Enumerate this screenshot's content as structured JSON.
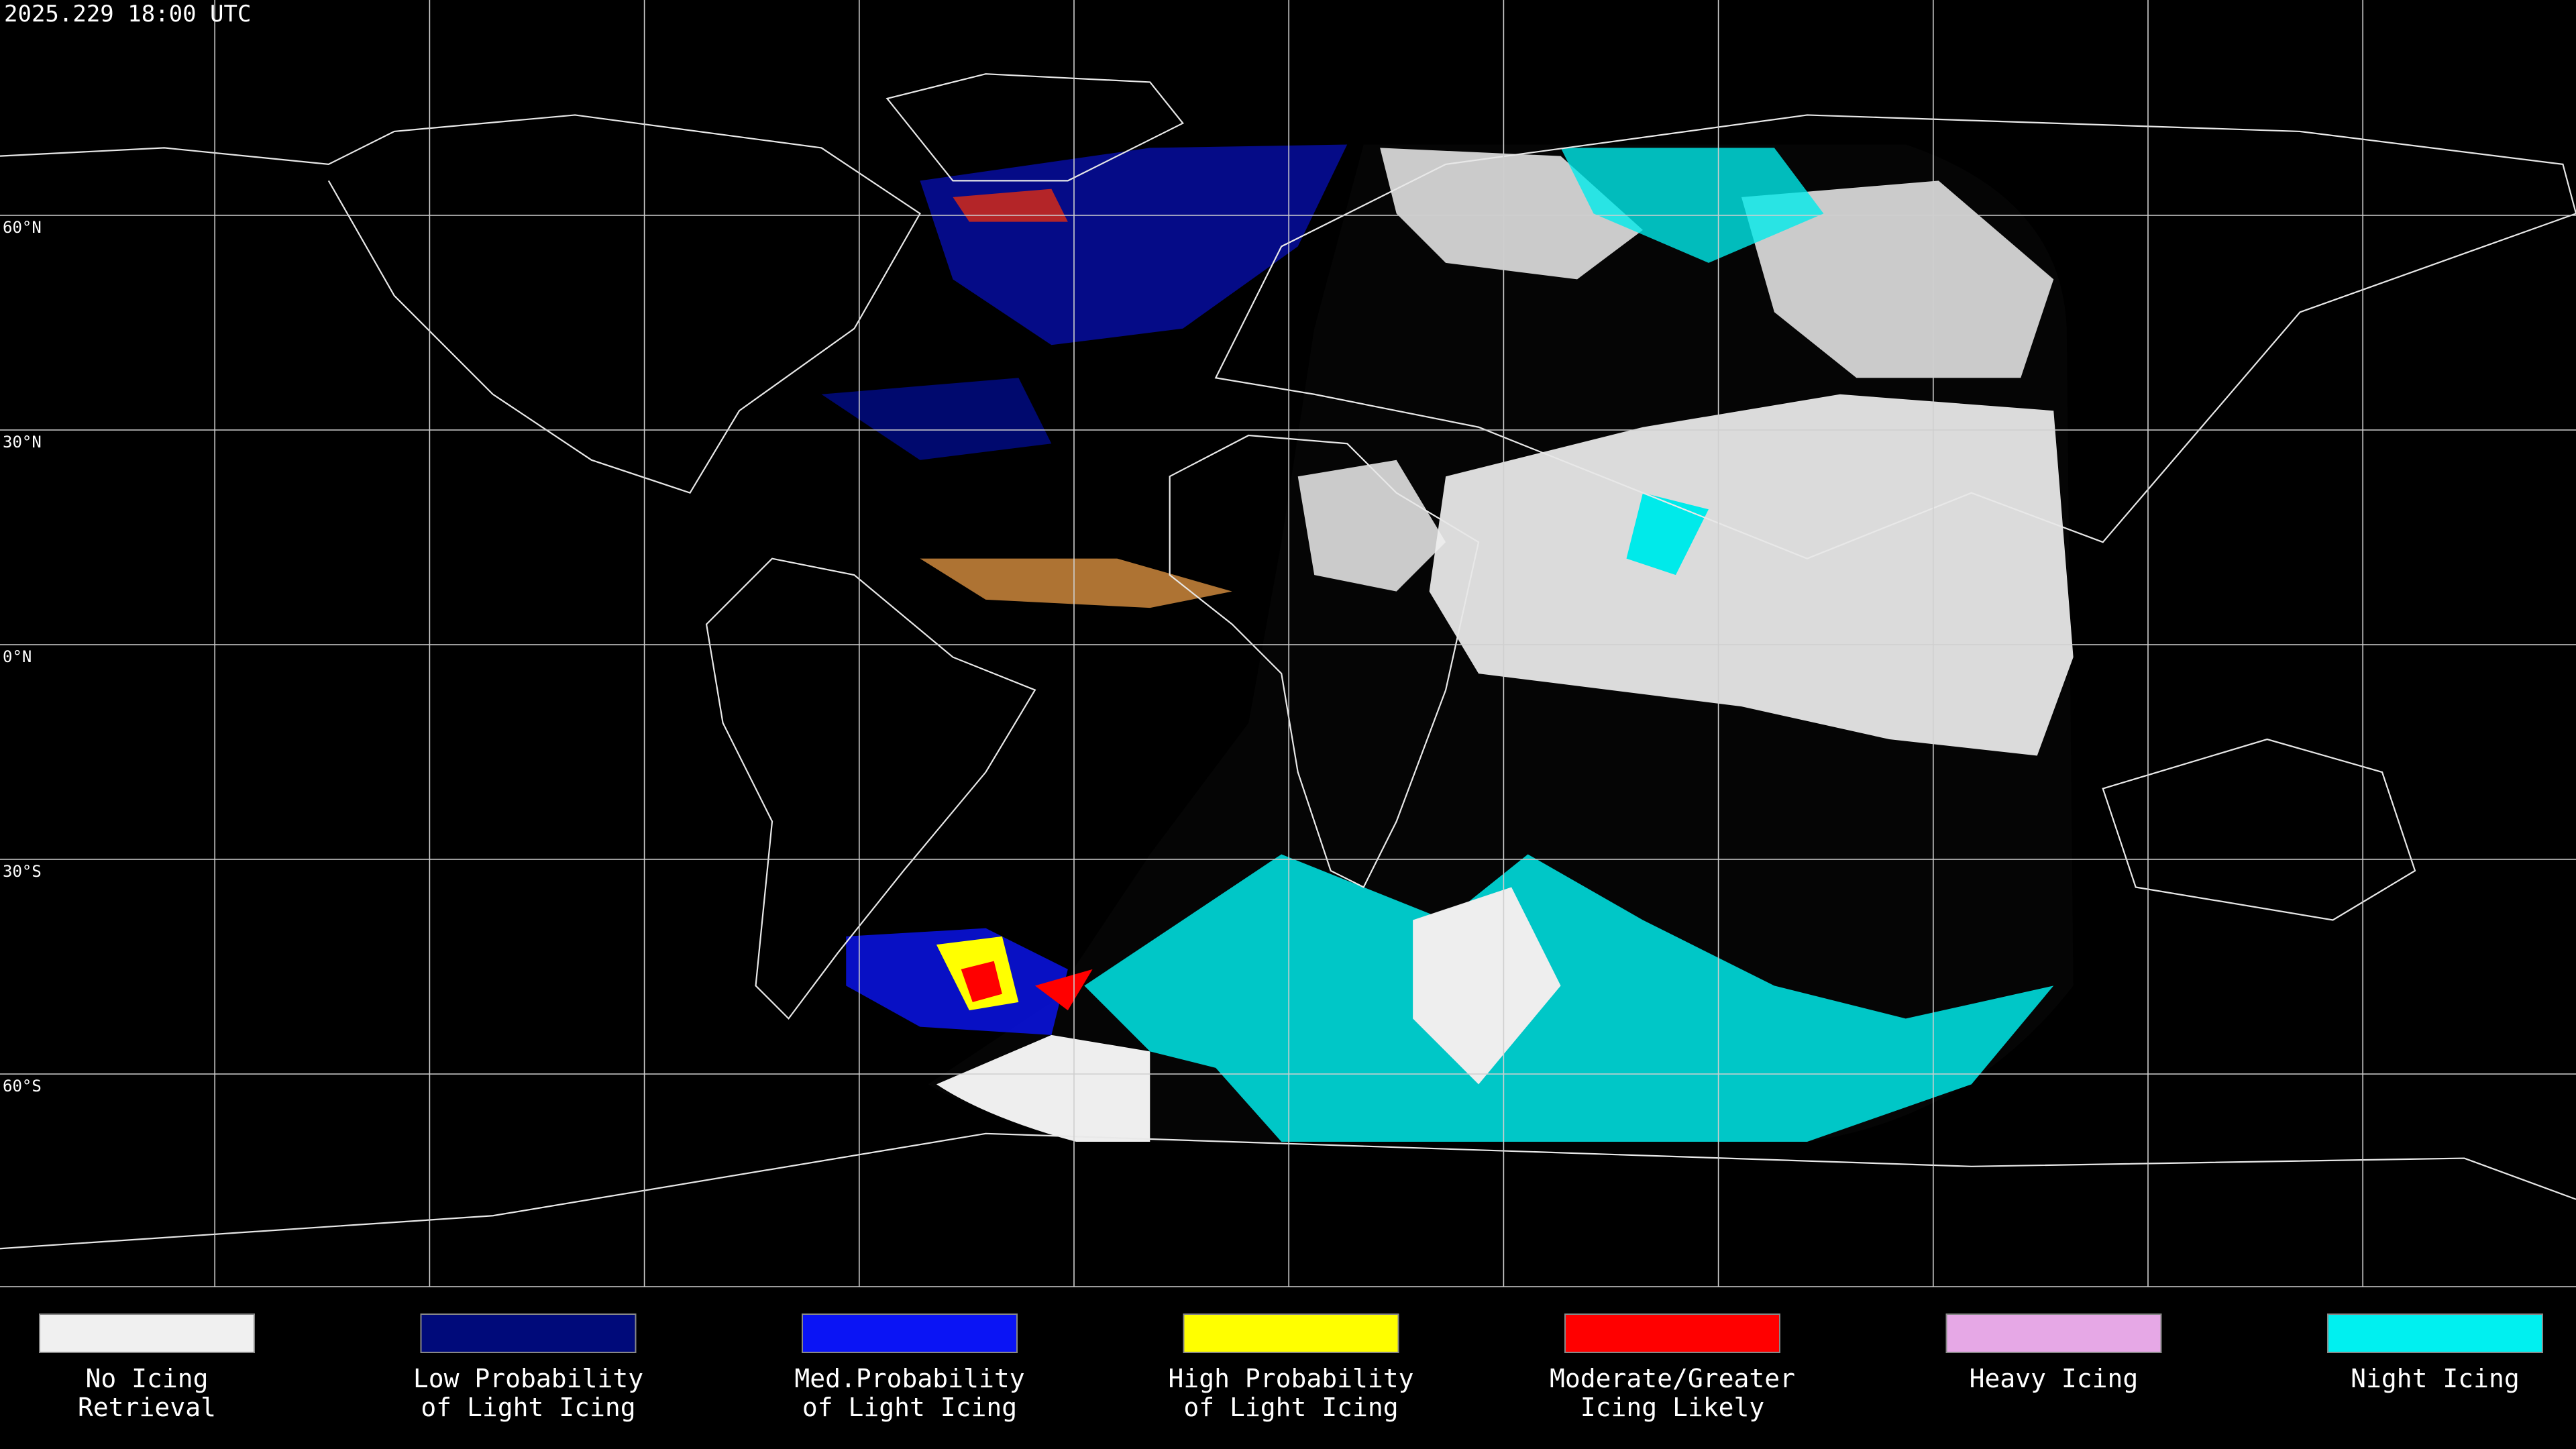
{
  "timestamp": "2025.229 18:00 UTC",
  "lat_labels": [
    "60°N",
    "30°N",
    "0°N",
    "30°S",
    "60°S"
  ],
  "legend": [
    {
      "label_lines": [
        "No Icing",
        "Retrieval"
      ],
      "color": "#f0f0f0"
    },
    {
      "label_lines": [
        "Low Probability",
        "of Light Icing"
      ],
      "color": "#000a7a"
    },
    {
      "label_lines": [
        "Med.Probability",
        "of Light Icing"
      ],
      "color": "#0a14f5"
    },
    {
      "label_lines": [
        "High Probability",
        "of Light Icing"
      ],
      "color": "#ffff00"
    },
    {
      "label_lines": [
        "Moderate/Greater",
        "Icing Likely"
      ],
      "color": "#ff0000"
    },
    {
      "label_lines": [
        "Heavy Icing"
      ],
      "color": "#e6a8e6"
    },
    {
      "label_lines": [
        "Night Icing"
      ],
      "color": "#00f0f0"
    }
  ]
}
